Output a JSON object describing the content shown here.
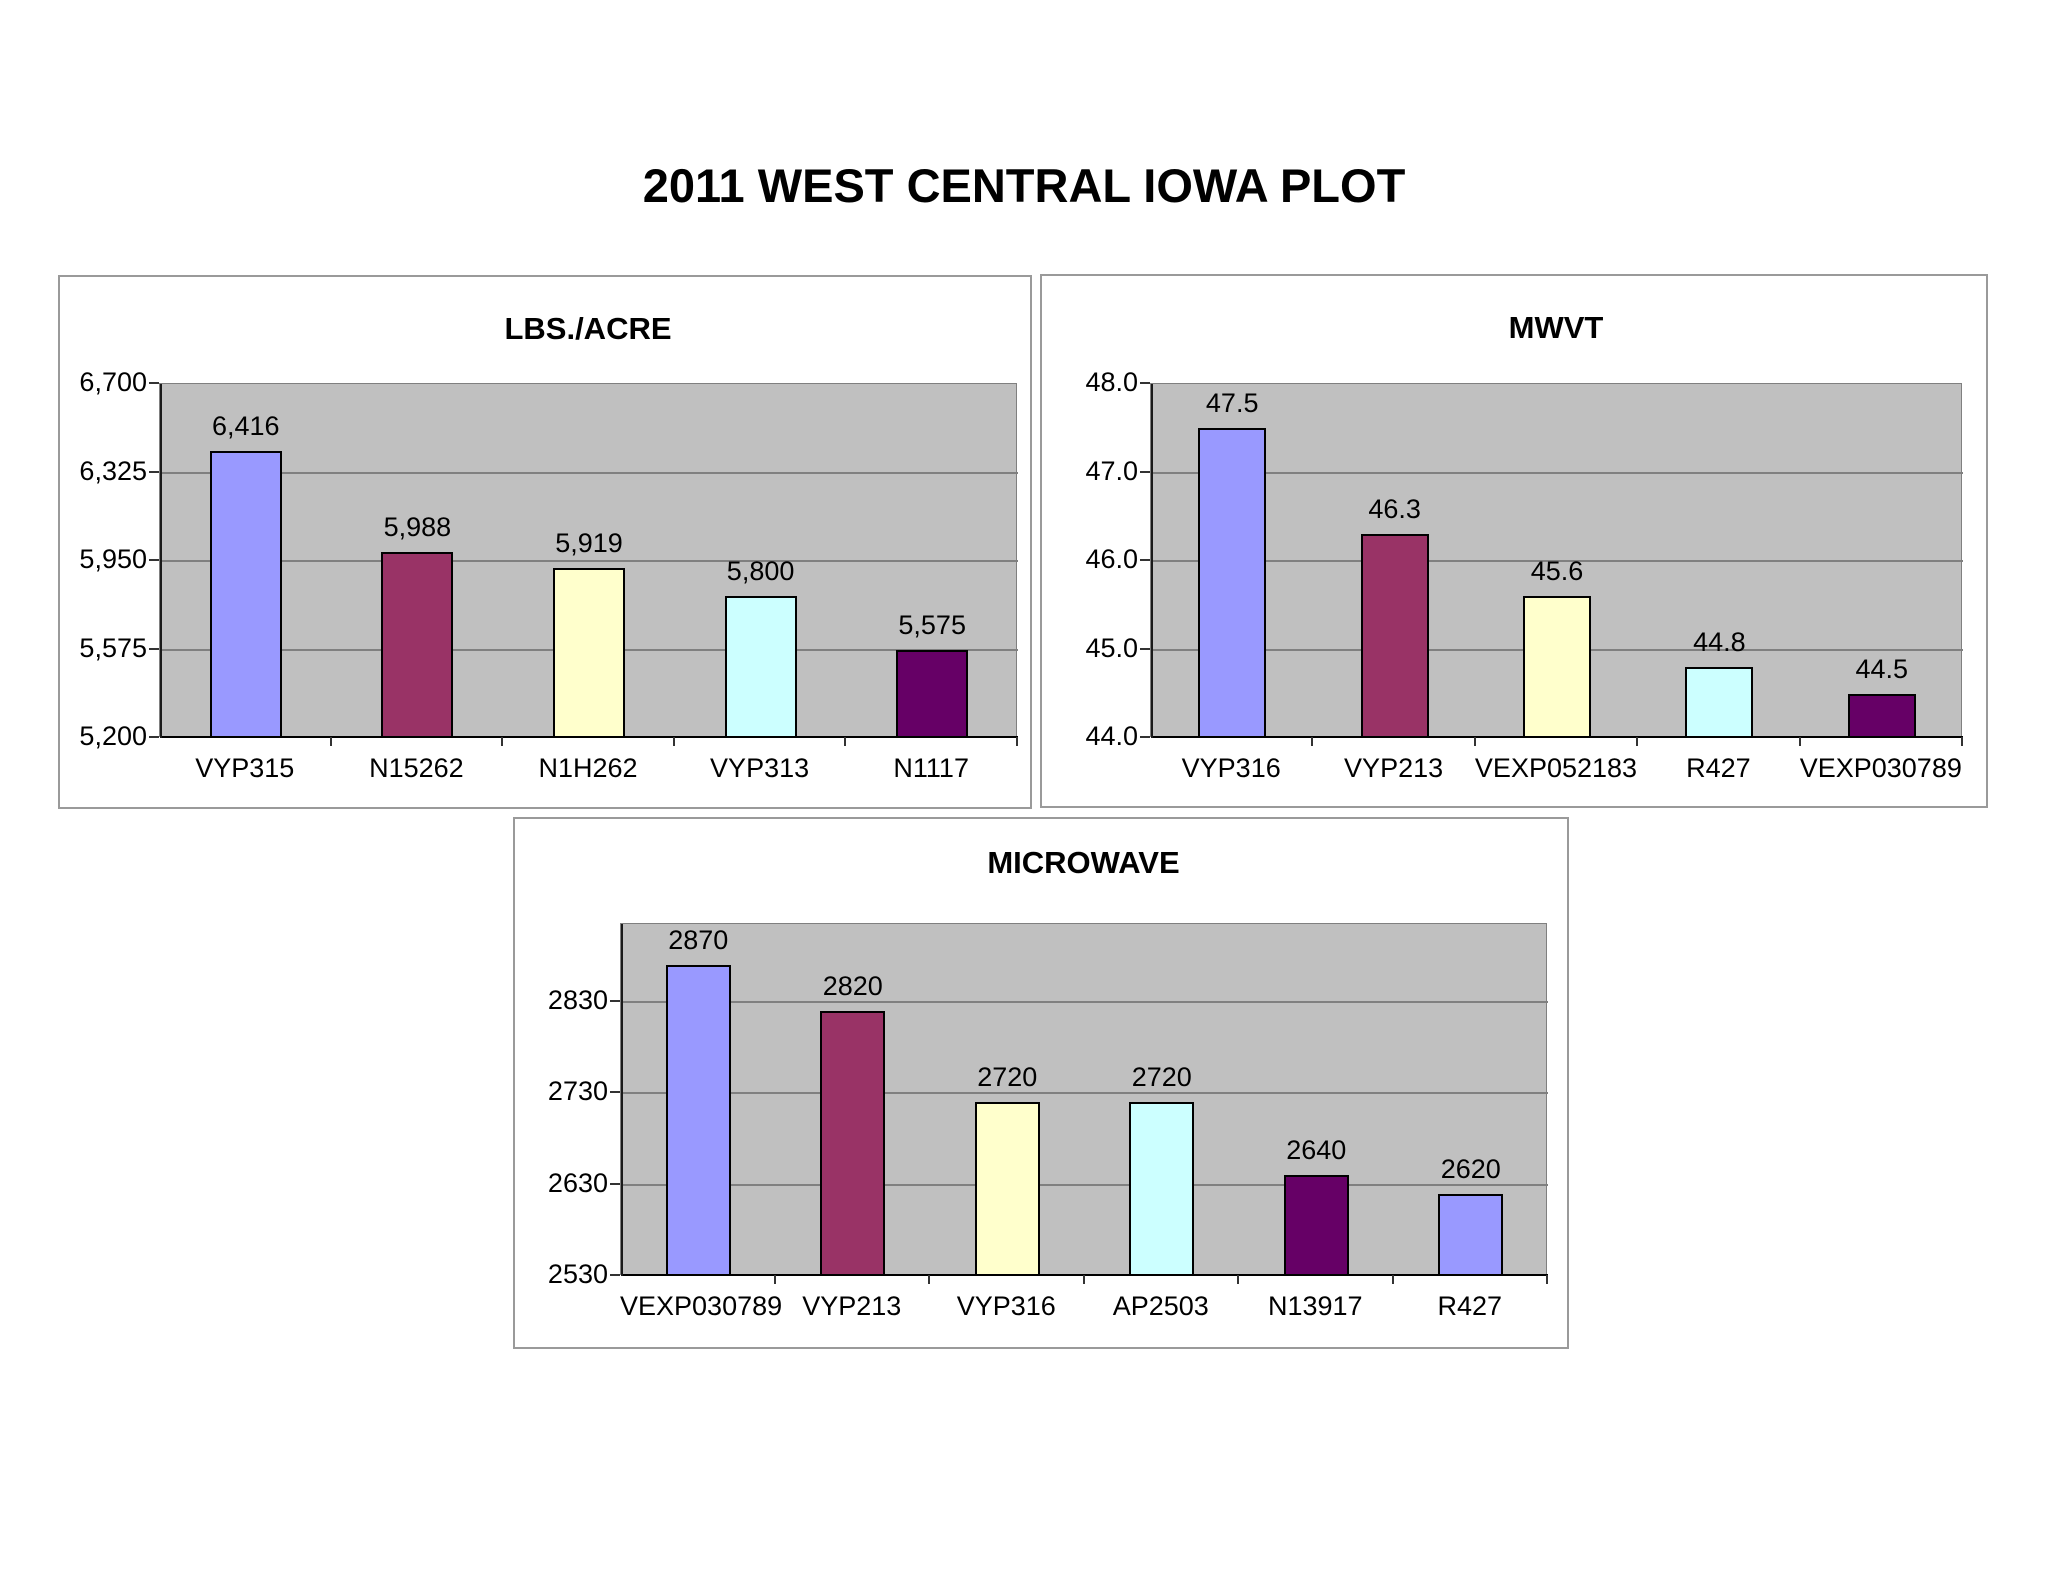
{
  "page_title": "2011 WEST CENTRAL IOWA PLOT",
  "colors": {
    "plot_bg": "#C0C0C0",
    "gridline": "#808080",
    "bar_border": "#000000",
    "panel_border": "#9A9A9A",
    "bar_palette": [
      "#9999FF",
      "#993366",
      "#FFFFCC",
      "#CCFFFF",
      "#660066"
    ]
  },
  "chart_data": [
    {
      "type": "bar",
      "title": "LBS./ACRE",
      "categories": [
        "VYP315",
        "N15262",
        "N1H262",
        "VYP313",
        "N1117"
      ],
      "values": [
        6416,
        5988,
        5919,
        5800,
        5575
      ],
      "data_labels": [
        "6,416",
        "5,988",
        "5,919",
        "5,800",
        "5,575"
      ],
      "bar_colors": [
        "#9999FF",
        "#993366",
        "#FFFFCC",
        "#CCFFFF",
        "#660066"
      ],
      "yticks": [
        5200,
        5575,
        5950,
        6325,
        6700
      ],
      "ytick_labels": [
        "5,200",
        "5,575",
        "5,950",
        "6,325",
        "6,700"
      ],
      "ylim": [
        5200,
        6700
      ],
      "xlabel": "",
      "ylabel": "",
      "grid": true,
      "legend": false
    },
    {
      "type": "bar",
      "title": "MWVT",
      "categories": [
        "VYP316",
        "VYP213",
        "VEXP052183",
        "R427",
        "VEXP030789"
      ],
      "values": [
        47.5,
        46.3,
        45.6,
        44.8,
        44.5
      ],
      "data_labels": [
        "47.5",
        "46.3",
        "45.6",
        "44.8",
        "44.5"
      ],
      "bar_colors": [
        "#9999FF",
        "#993366",
        "#FFFFCC",
        "#CCFFFF",
        "#660066"
      ],
      "yticks": [
        44.0,
        45.0,
        46.0,
        47.0,
        48.0
      ],
      "ytick_labels": [
        "44.0",
        "45.0",
        "46.0",
        "47.0",
        "48.0"
      ],
      "ylim": [
        44.0,
        48.0
      ],
      "xlabel": "",
      "ylabel": "",
      "grid": true,
      "legend": false
    },
    {
      "type": "bar",
      "title": "MICROWAVE",
      "categories": [
        "VEXP030789",
        "VYP213",
        "VYP316",
        "AP2503",
        "N13917",
        "R427"
      ],
      "values": [
        2870,
        2820,
        2720,
        2720,
        2640,
        2620
      ],
      "data_labels": [
        "2870",
        "2820",
        "2720",
        "2720",
        "2640",
        "2620"
      ],
      "bar_colors": [
        "#9999FF",
        "#993366",
        "#FFFFCC",
        "#CCFFFF",
        "#660066",
        "#9999FF"
      ],
      "yticks": [
        2530,
        2630,
        2730,
        2830
      ],
      "ytick_labels": [
        "2530",
        "2630",
        "2730",
        "2830"
      ],
      "ylim": [
        2530,
        2915
      ],
      "xlabel": "",
      "ylabel": "",
      "grid": true,
      "legend": false
    }
  ]
}
